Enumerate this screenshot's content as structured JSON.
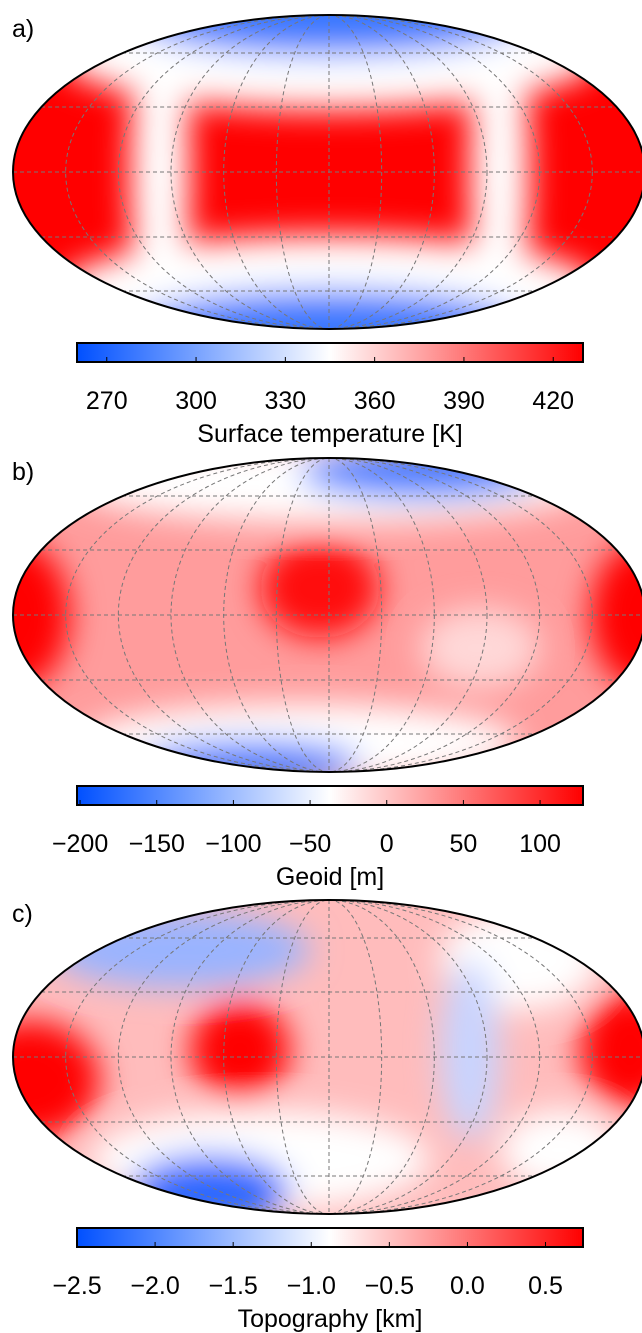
{
  "chart_data": [
    {
      "type": "map",
      "panel": "a)",
      "xlabel": "Surface temperature [K]",
      "xlim": [
        260,
        430
      ],
      "xticks": [
        270,
        300,
        330,
        360,
        390,
        420
      ],
      "colormap": [
        "#0050ff",
        "#ffffff",
        "#ff0000"
      ]
    },
    {
      "type": "map",
      "panel": "b)",
      "xlabel": "Geoid [m]",
      "xlim": [
        -202,
        128
      ],
      "xticks": [
        {
          "value": -200,
          "label": "−200"
        },
        {
          "value": -150,
          "label": "−150"
        },
        {
          "value": -100,
          "label": "−100"
        },
        {
          "value": -50,
          "label": "−50"
        },
        0,
        50,
        100
      ],
      "colormap": [
        "#0050ff",
        "#ffffff",
        "#ff0000"
      ]
    },
    {
      "type": "map",
      "panel": "c)",
      "xlabel": "Topography [km]",
      "xlim": [
        -2.5,
        0.74
      ],
      "xticks": [
        {
          "value": -2.5,
          "label": "−2.5"
        },
        {
          "value": -2.0,
          "label": "−2.0"
        },
        {
          "value": -1.5,
          "label": "−1.5"
        },
        {
          "value": -1.0,
          "label": "−1.0"
        },
        {
          "value": -0.5,
          "label": "−0.5"
        },
        {
          "value": 0.0,
          "label": "0.0"
        },
        0.5
      ],
      "colormap": [
        "#0050ff",
        "#ffffff",
        "#ff0000"
      ]
    }
  ]
}
